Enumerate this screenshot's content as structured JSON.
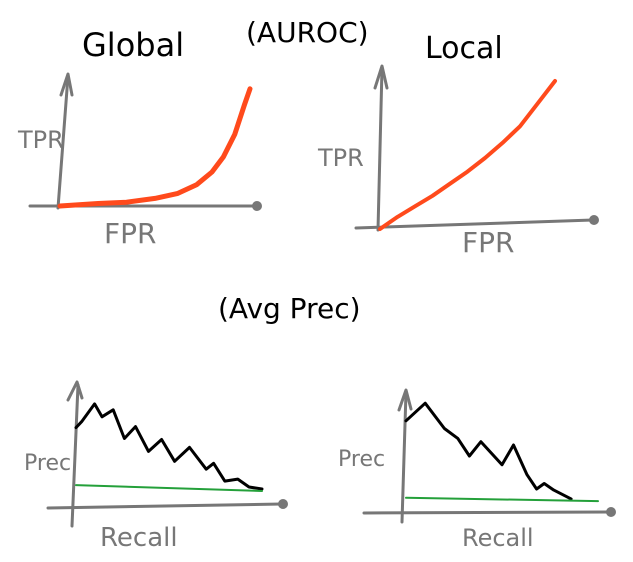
{
  "labels": {
    "global_title": "Global",
    "auroc_title": "(AUROC)",
    "local_title": "Local",
    "avgprec_title": "(Avg Prec)"
  },
  "chart_data": [
    {
      "type": "line",
      "title": "Global",
      "xlabel": "FPR",
      "ylabel": "TPR",
      "series": [
        {
          "color": "#ff4a1c",
          "x": [
            0.0,
            0.1,
            0.2,
            0.35,
            0.5,
            0.62,
            0.72,
            0.8,
            0.86,
            0.92,
            0.97,
            1.0
          ],
          "y": [
            0.0,
            0.01,
            0.02,
            0.03,
            0.06,
            0.1,
            0.17,
            0.27,
            0.39,
            0.57,
            0.8,
            0.93
          ]
        }
      ],
      "xlim": [
        0,
        1
      ],
      "ylim": [
        0,
        1
      ]
    },
    {
      "type": "line",
      "title": "Local",
      "xlabel": "FPR",
      "ylabel": "TPR",
      "series": [
        {
          "color": "#ff4a1c",
          "x": [
            0.0,
            0.1,
            0.2,
            0.3,
            0.4,
            0.5,
            0.6,
            0.7,
            0.8,
            0.9,
            1.0
          ],
          "y": [
            0.0,
            0.08,
            0.15,
            0.22,
            0.3,
            0.38,
            0.47,
            0.57,
            0.68,
            0.83,
            0.98
          ]
        }
      ],
      "xlim": [
        0,
        1
      ],
      "ylim": [
        0,
        1
      ]
    },
    {
      "type": "line",
      "xlabel": "Recall",
      "ylabel": "Prec",
      "series": [
        {
          "color": "#000000",
          "x": [
            0.0,
            0.03,
            0.1,
            0.14,
            0.2,
            0.26,
            0.32,
            0.39,
            0.46,
            0.53,
            0.61,
            0.7,
            0.74,
            0.8,
            0.87,
            0.93,
            1.0
          ],
          "y": [
            0.64,
            0.7,
            0.88,
            0.75,
            0.82,
            0.53,
            0.65,
            0.4,
            0.52,
            0.3,
            0.44,
            0.22,
            0.28,
            0.1,
            0.12,
            0.04,
            0.02
          ]
        },
        {
          "color": "#24a03a",
          "x": [
            0.0,
            1.0
          ],
          "y": [
            0.06,
            0.0
          ]
        }
      ],
      "xlim": [
        0,
        1
      ],
      "ylim": [
        0,
        1
      ]
    },
    {
      "type": "line",
      "xlabel": "Recall",
      "ylabel": "Prec",
      "series": [
        {
          "color": "#000000",
          "x": [
            0.0,
            0.1,
            0.2,
            0.27,
            0.33,
            0.39,
            0.5,
            0.56,
            0.63,
            0.68,
            0.72,
            0.77,
            0.86
          ],
          "y": [
            0.72,
            0.88,
            0.65,
            0.56,
            0.4,
            0.53,
            0.32,
            0.5,
            0.23,
            0.1,
            0.15,
            0.09,
            0.01
          ]
        },
        {
          "color": "#24a03a",
          "x": [
            0.0,
            1.0
          ],
          "y": [
            0.02,
            -0.01
          ]
        }
      ],
      "xlim": [
        0,
        1
      ],
      "ylim": [
        0,
        1
      ]
    }
  ]
}
